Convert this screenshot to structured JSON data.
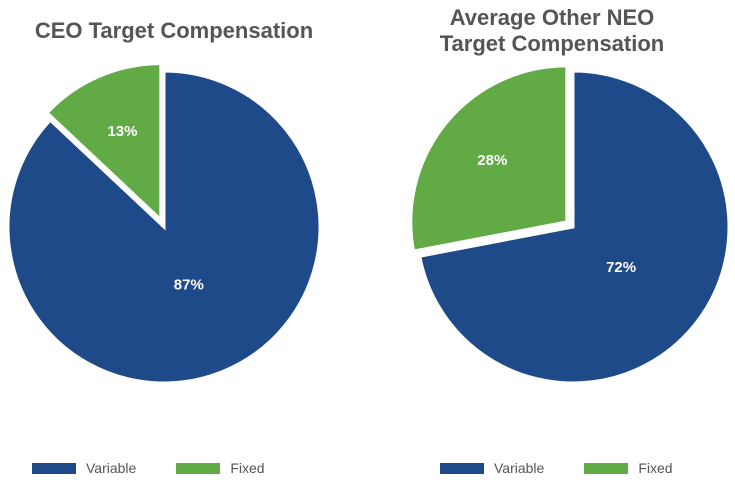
{
  "colors": {
    "variable": "#1F4A89",
    "fixed": "#62AA45",
    "title": "#555555"
  },
  "chart_data": [
    {
      "type": "pie",
      "title": "CEO Target Compensation",
      "slices": [
        {
          "label": "Variable",
          "value": 87,
          "display": "87%",
          "color": "#1F4A89"
        },
        {
          "label": "Fixed",
          "value": 13,
          "display": "13%",
          "color": "#62AA45"
        }
      ],
      "legend": [
        "Variable",
        "Fixed"
      ],
      "legend_position": "bottom"
    },
    {
      "type": "pie",
      "title": "Average Other NEO\nTarget Compensation",
      "slices": [
        {
          "label": "Variable",
          "value": 72,
          "display": "72%",
          "color": "#1F4A89"
        },
        {
          "label": "Fixed",
          "value": 28,
          "display": "28%",
          "color": "#62AA45"
        }
      ],
      "legend": [
        "Variable",
        "Fixed"
      ],
      "legend_position": "bottom"
    }
  ]
}
